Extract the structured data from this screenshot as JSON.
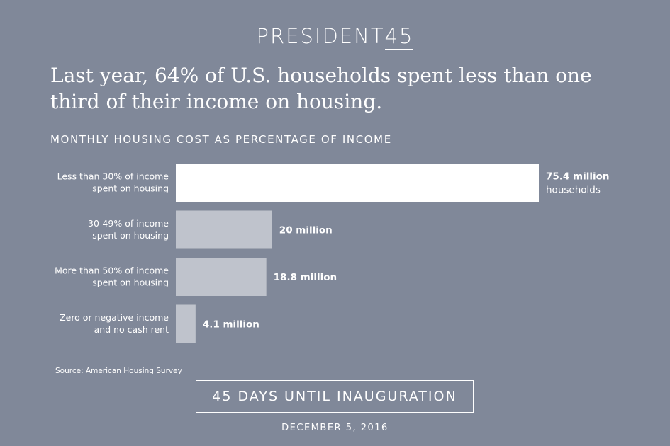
{
  "brand": {
    "prefix": "PRESIDENT",
    "number": "45"
  },
  "headline": "Last year, 64% of U.S. households spent less than one third of their income on housing.",
  "colors": {
    "background": "#808899",
    "highlight_bar": "#ffffff",
    "bar": "#bfc3cc",
    "text": "#ffffff"
  },
  "chart_data": {
    "type": "bar",
    "orientation": "horizontal",
    "title": "MONTHLY HOUSING COST AS PERCENTAGE OF INCOME",
    "unit": "million households",
    "categories": [
      [
        "Less than 30% of income",
        "spent on housing"
      ],
      [
        "30-49% of income",
        "spent on housing"
      ],
      [
        "More than 50% of income",
        "spent on housing"
      ],
      [
        "Zero or negative income",
        "and no cash rent"
      ]
    ],
    "values": [
      75.4,
      20,
      18.8,
      4.1
    ],
    "value_labels": [
      [
        "75.4 million",
        "households"
      ],
      [
        "20 million"
      ],
      [
        "18.8 million"
      ],
      [
        "4.1 million"
      ]
    ],
    "highlight_index": 0,
    "xlim": [
      0,
      75.4
    ],
    "grid": false,
    "xlabel": "",
    "ylabel": ""
  },
  "source": "Source: American Housing Survey",
  "countdown": "45 DAYS UNTIL INAUGURATION",
  "date": "DECEMBER 5, 2016"
}
